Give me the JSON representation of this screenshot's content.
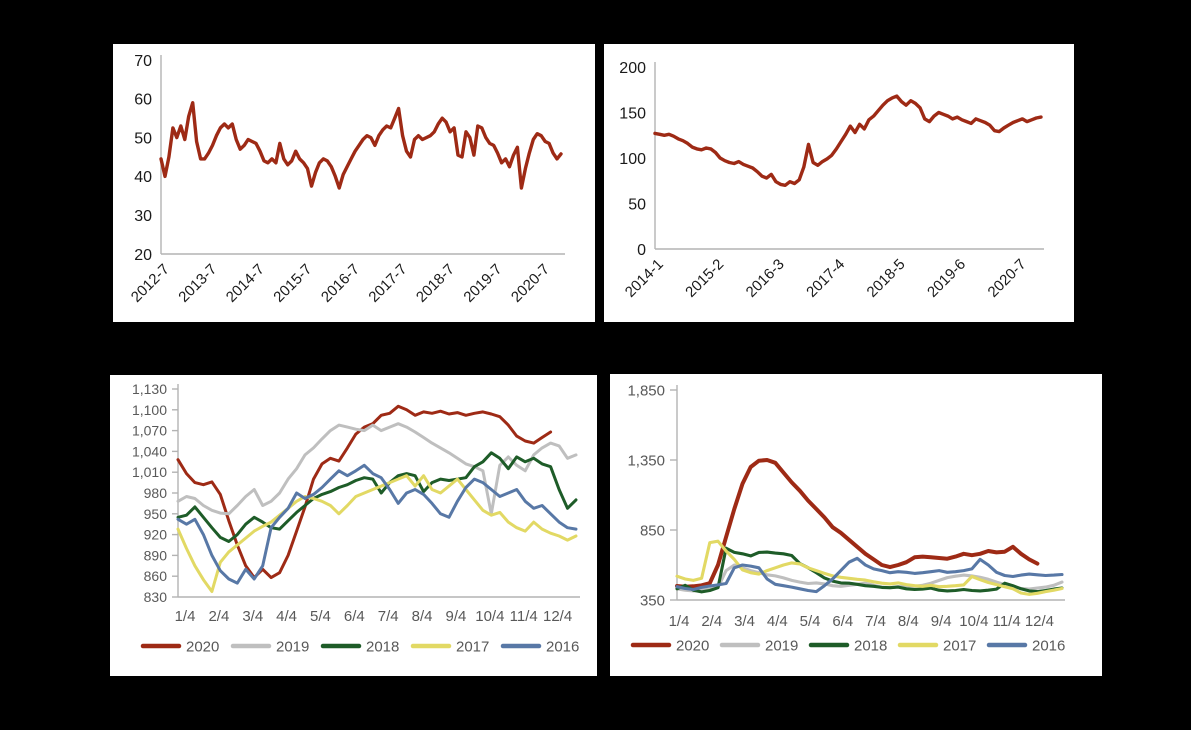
{
  "page": {
    "background_color": "#000000",
    "panel_color": "#ffffff",
    "axis_color": "#b3b3b3",
    "dark_label_color": "#1a1a1a",
    "gray_label_color": "#595959"
  },
  "chart_data": [
    {
      "id": "top-left-line",
      "type": "line",
      "title": "",
      "grid": false,
      "legend_position": "none",
      "ylim": [
        20,
        70
      ],
      "y_ticks": [
        20,
        30,
        40,
        50,
        60,
        70
      ],
      "y_tick_labels": [
        "20",
        "30",
        "40",
        "50",
        "60",
        "70"
      ],
      "x_tick_step": 12,
      "x_tick_labels": [
        "2012-7",
        "2013-7",
        "2014-7",
        "2015-7",
        "2016-7",
        "2017-7",
        "2018-7",
        "2019-7",
        "2020-7"
      ],
      "series": [
        {
          "name": "value",
          "color": "#9E2A15",
          "values": [
            44.5,
            40,
            45,
            52.5,
            50,
            53,
            49.5,
            55.5,
            59,
            49,
            44.5,
            44.5,
            46,
            48,
            50.5,
            52.5,
            53.5,
            52.5,
            53.5,
            49.5,
            47,
            48,
            49.5,
            49,
            48.5,
            46.5,
            44,
            43.5,
            44.5,
            43.5,
            48.5,
            44.5,
            43,
            44,
            46.5,
            44.5,
            43.5,
            42,
            37.5,
            41,
            43.5,
            44.5,
            44,
            42.5,
            40,
            37,
            40.5,
            42.5,
            44.5,
            46.5,
            48,
            49.5,
            50.5,
            50,
            48,
            50.5,
            52,
            53,
            52.5,
            55,
            57.5,
            50.5,
            46.5,
            45,
            49.5,
            50.5,
            49.5,
            50,
            50.5,
            51.5,
            53.5,
            55,
            54,
            51.5,
            52.5,
            45.5,
            45,
            51.5,
            50,
            45.5,
            53,
            52.5,
            50,
            48.5,
            48,
            46,
            43.5,
            44.5,
            42.5,
            45.5,
            47.5,
            37,
            42,
            46,
            49.5,
            51,
            50.5,
            49,
            48.5,
            46,
            44.5,
            45.8
          ]
        }
      ]
    },
    {
      "id": "top-right-line",
      "type": "line",
      "title": "",
      "grid": false,
      "legend_position": "none",
      "ylim": [
        0,
        200
      ],
      "y_ticks": [
        0,
        50,
        100,
        150,
        200
      ],
      "y_tick_labels": [
        "0",
        "50",
        "100",
        "150",
        "200"
      ],
      "x_tick_step": 13,
      "x_tick_labels": [
        "2014-1",
        "2015-2",
        "2016-3",
        "2017-4",
        "2018-5",
        "2019-6",
        "2020-7"
      ],
      "series": [
        {
          "name": "value",
          "color": "#9E2A15",
          "values": [
            127,
            126,
            125,
            126,
            124,
            121,
            119,
            116,
            112,
            110,
            109,
            111,
            110,
            106,
            100,
            97,
            95,
            94,
            96,
            93,
            91,
            89,
            85,
            80,
            78,
            82,
            74,
            71,
            70,
            74,
            72,
            76,
            90,
            115,
            95,
            92,
            96,
            99,
            103,
            110,
            118,
            126,
            135,
            128,
            137,
            132,
            142,
            146,
            152,
            158,
            163,
            166,
            168,
            162,
            158,
            163,
            160,
            155,
            143,
            140,
            146,
            150,
            148,
            146,
            143,
            145,
            142,
            140,
            138,
            143,
            141,
            139,
            136,
            130,
            129,
            133,
            136,
            139,
            141,
            143,
            140,
            142,
            144,
            145
          ]
        }
      ]
    },
    {
      "id": "bottom-left-lines",
      "type": "line",
      "title": "",
      "grid": false,
      "legend_position": "bottom",
      "ylim": [
        830,
        1130
      ],
      "y_ticks": [
        830,
        860,
        890,
        920,
        950,
        980,
        1010,
        1040,
        1070,
        1100,
        1130
      ],
      "y_tick_labels": [
        "830",
        "860",
        "890",
        "920",
        "950",
        "980",
        "1,010",
        "1,040",
        "1,070",
        "1,100",
        "1,130"
      ],
      "x_tick_step": 4,
      "x_tick_labels": [
        "1/4",
        "2/4",
        "3/4",
        "4/4",
        "5/4",
        "6/4",
        "7/4",
        "8/4",
        "9/4",
        "10/4",
        "11/4",
        "12/4"
      ],
      "series": [
        {
          "name": "2020",
          "color": "#9E2A15",
          "values": [
            1028,
            1008,
            995,
            992,
            996,
            978,
            940,
            905,
            875,
            858,
            870,
            858,
            865,
            890,
            925,
            960,
            1000,
            1022,
            1030,
            1026,
            1045,
            1065,
            1075,
            1080,
            1092,
            1095,
            1105,
            1100,
            1092,
            1097,
            1095,
            1098,
            1094,
            1096,
            1092,
            1095,
            1097,
            1094,
            1090,
            1078,
            1062,
            1055,
            1052,
            1060,
            1068
          ]
        },
        {
          "name": "2019",
          "color": "#BFBFBF",
          "values": [
            968,
            975,
            972,
            962,
            955,
            951,
            950,
            962,
            975,
            985,
            962,
            968,
            980,
            1000,
            1015,
            1035,
            1045,
            1058,
            1070,
            1078,
            1075,
            1072,
            1070,
            1078,
            1070,
            1075,
            1080,
            1075,
            1068,
            1060,
            1052,
            1045,
            1038,
            1030,
            1022,
            1018,
            1012,
            950,
            1020,
            1032,
            1020,
            1012,
            1035,
            1045,
            1052,
            1048,
            1030,
            1035
          ]
        },
        {
          "name": "2018",
          "color": "#1E5C28",
          "values": [
            945,
            948,
            960,
            945,
            930,
            916,
            910,
            920,
            935,
            945,
            938,
            930,
            928,
            940,
            952,
            962,
            972,
            978,
            982,
            988,
            992,
            998,
            1002,
            1000,
            980,
            995,
            1005,
            1008,
            1005,
            982,
            995,
            1000,
            998,
            1000,
            1002,
            1018,
            1025,
            1038,
            1030,
            1015,
            1032,
            1025,
            1030,
            1022,
            1018,
            985,
            958,
            970
          ]
        },
        {
          "name": "2017",
          "color": "#E2D964",
          "values": [
            928,
            900,
            875,
            855,
            838,
            880,
            895,
            905,
            915,
            925,
            932,
            938,
            948,
            958,
            968,
            975,
            972,
            968,
            962,
            950,
            962,
            975,
            980,
            985,
            990,
            995,
            1000,
            1005,
            990,
            1005,
            985,
            980,
            990,
            1000,
            985,
            970,
            955,
            948,
            952,
            938,
            930,
            925,
            938,
            928,
            922,
            918,
            912,
            918
          ]
        },
        {
          "name": "2016",
          "color": "#5878A6",
          "values": [
            942,
            935,
            942,
            920,
            890,
            868,
            856,
            850,
            870,
            856,
            875,
            930,
            945,
            958,
            980,
            972,
            978,
            988,
            1000,
            1012,
            1005,
            1012,
            1020,
            1008,
            1002,
            985,
            965,
            980,
            985,
            978,
            965,
            950,
            945,
            968,
            988,
            1000,
            995,
            985,
            975,
            980,
            985,
            968,
            958,
            962,
            950,
            938,
            930,
            928
          ]
        }
      ]
    },
    {
      "id": "bottom-right-lines",
      "type": "line",
      "title": "",
      "grid": false,
      "legend_position": "bottom",
      "ylim": [
        350,
        1850
      ],
      "y_ticks": [
        350,
        850,
        1350,
        1850
      ],
      "y_tick_labels": [
        "350",
        "850",
        "1,350",
        "1,850"
      ],
      "x_tick_step": 4,
      "x_tick_labels": [
        "1/4",
        "2/4",
        "3/4",
        "4/4",
        "5/4",
        "6/4",
        "7/4",
        "8/4",
        "9/4",
        "10/4",
        "11/4",
        "12/4"
      ],
      "series": [
        {
          "name": "2020",
          "color": "#9E2A15",
          "values": [
            450,
            445,
            448,
            455,
            470,
            600,
            800,
            1000,
            1180,
            1300,
            1345,
            1350,
            1330,
            1260,
            1190,
            1130,
            1060,
            1000,
            940,
            870,
            830,
            780,
            730,
            680,
            640,
            600,
            585,
            600,
            620,
            655,
            660,
            655,
            650,
            645,
            660,
            680,
            670,
            680,
            700,
            690,
            695,
            730,
            680,
            640,
            610
          ]
        },
        {
          "name": "2019",
          "color": "#BFBFBF",
          "values": [
            430,
            420,
            415,
            420,
            428,
            440,
            560,
            600,
            580,
            560,
            545,
            530,
            522,
            508,
            490,
            478,
            468,
            472,
            465,
            452,
            448,
            455,
            462,
            470,
            455,
            442,
            438,
            445,
            452,
            448,
            455,
            470,
            490,
            510,
            520,
            528,
            522,
            512,
            498,
            478,
            460,
            445,
            432,
            428,
            435,
            442,
            455,
            478
          ]
        },
        {
          "name": "2018",
          "color": "#1E5C28",
          "values": [
            430,
            455,
            420,
            408,
            418,
            438,
            720,
            690,
            680,
            665,
            690,
            692,
            685,
            680,
            668,
            610,
            580,
            545,
            508,
            485,
            472,
            470,
            462,
            452,
            448,
            440,
            438,
            442,
            430,
            425,
            428,
            435,
            420,
            415,
            418,
            425,
            418,
            415,
            420,
            428,
            470,
            452,
            430,
            415,
            410,
            418,
            428,
            435
          ]
        },
        {
          "name": "2017",
          "color": "#E2D964",
          "values": [
            520,
            500,
            490,
            505,
            760,
            770,
            700,
            640,
            565,
            545,
            535,
            560,
            580,
            600,
            615,
            608,
            580,
            560,
            540,
            522,
            512,
            505,
            498,
            492,
            480,
            470,
            465,
            472,
            460,
            452,
            448,
            455,
            445,
            448,
            452,
            458,
            518,
            495,
            475,
            460,
            445,
            430,
            400,
            390,
            398,
            410,
            420,
            432
          ]
        },
        {
          "name": "2016",
          "color": "#5878A6",
          "values": [
            445,
            432,
            425,
            440,
            450,
            458,
            468,
            580,
            600,
            592,
            580,
            500,
            462,
            452,
            442,
            430,
            418,
            410,
            452,
            500,
            560,
            620,
            648,
            600,
            572,
            560,
            545,
            552,
            548,
            540,
            545,
            552,
            560,
            548,
            552,
            560,
            572,
            640,
            600,
            548,
            525,
            518,
            528,
            535,
            530,
            525,
            528,
            532
          ]
        }
      ]
    }
  ]
}
